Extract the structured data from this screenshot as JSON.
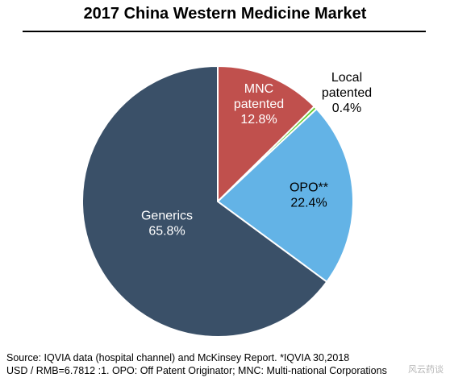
{
  "chart_data": {
    "type": "pie",
    "title": "2017 China Western Medicine Market",
    "slices": [
      {
        "label": [
          "MNC",
          "patented"
        ],
        "value": 12.8,
        "value_text": "12.8%",
        "color": "#c0504d",
        "label_color": "#ffffff"
      },
      {
        "label": [
          "Local",
          "patented"
        ],
        "value": 0.4,
        "value_text": "0.4%",
        "color": "#66cc33",
        "label_color": "#000000"
      },
      {
        "label": [
          "OPO**"
        ],
        "value": 22.4,
        "value_text": "22.4%",
        "color": "#63b3e6",
        "label_color": "#000000"
      },
      {
        "label": [
          "Generics"
        ],
        "value": 65.8,
        "value_text": "65.8%",
        "color": "#3a5068",
        "label_color": "#ffffff"
      }
    ],
    "start": "12 o'clock",
    "direction": "clockwise"
  },
  "footer": {
    "source_line1": "Source: IQVIA data (hospital channel) and McKinsey Report. *IQVIA 30,2018",
    "source_line2": "USD / RMB=6.7812 :1. OPO: Off Patent Originator; MNC: Multi-national Corporations",
    "watermark": "风云药谈"
  }
}
